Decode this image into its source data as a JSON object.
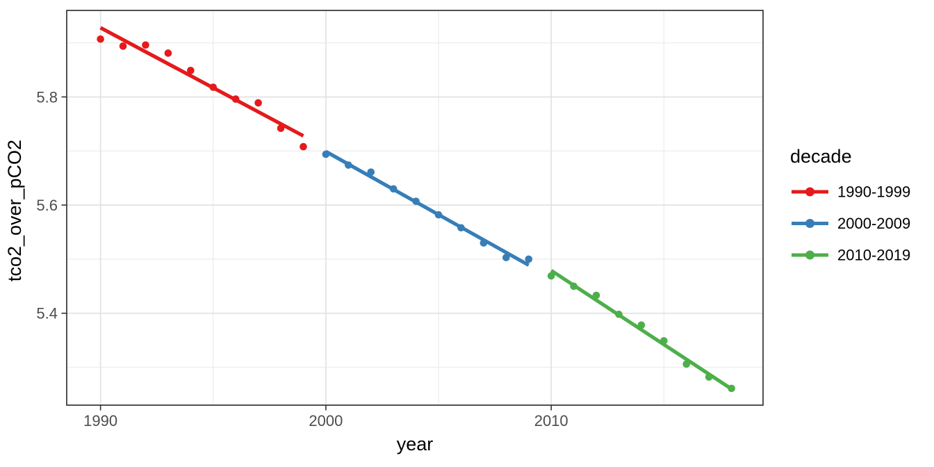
{
  "chart_data": {
    "type": "scatter",
    "title": "",
    "xlabel": "year",
    "ylabel": "tco2_over_pCO2",
    "xlim": [
      1988.5,
      2019.4
    ],
    "ylim": [
      5.23,
      5.96
    ],
    "x_ticks": [
      1990,
      2000,
      2010
    ],
    "x_minor_gridlines": [
      1995,
      2005,
      2015
    ],
    "y_ticks": [
      5.4,
      5.6,
      5.8
    ],
    "y_minor_gridlines": [
      5.3,
      5.5,
      5.7,
      5.9
    ],
    "grid": "major+minor, light gray on white panel, dark panel border",
    "legend": {
      "title": "decade",
      "position": "right"
    },
    "series": [
      {
        "name": "1990-1999",
        "color": "#E41A1C",
        "x": [
          1990,
          1991,
          1992,
          1993,
          1994,
          1995,
          1996,
          1997,
          1998,
          1999
        ],
        "y": [
          5.907,
          5.894,
          5.896,
          5.881,
          5.849,
          5.818,
          5.796,
          5.789,
          5.742,
          5.708
        ],
        "trend": {
          "x": [
            1990,
            1999
          ],
          "y": [
            5.928,
            5.728
          ]
        }
      },
      {
        "name": "2000-2009",
        "color": "#377EB8",
        "x": [
          2000,
          2001,
          2002,
          2003,
          2004,
          2005,
          2006,
          2007,
          2008,
          2009
        ],
        "y": [
          5.694,
          5.674,
          5.661,
          5.63,
          5.607,
          5.582,
          5.558,
          5.53,
          5.503,
          5.5
        ],
        "trend": {
          "x": [
            2000,
            2009
          ],
          "y": [
            5.699,
            5.489
          ]
        }
      },
      {
        "name": "2010-2019",
        "color": "#4DAF4A",
        "x": [
          2010,
          2011,
          2012,
          2013,
          2014,
          2015,
          2016,
          2017,
          2018
        ],
        "y": [
          5.469,
          5.45,
          5.433,
          5.398,
          5.378,
          5.349,
          5.306,
          5.282,
          5.261
        ],
        "trend": {
          "x": [
            2010,
            2018
          ],
          "y": [
            5.479,
            5.26
          ]
        }
      }
    ]
  }
}
